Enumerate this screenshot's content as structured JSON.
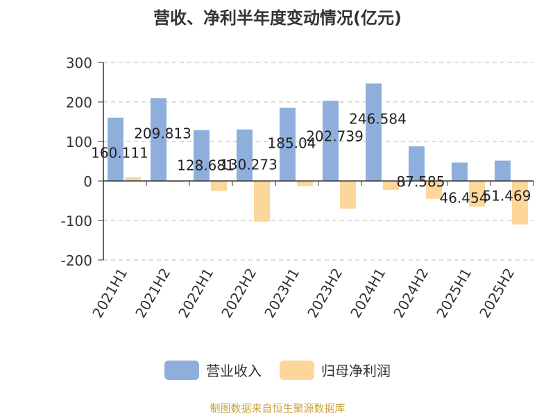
{
  "chart_data": {
    "type": "bar",
    "title": "营收、净利半年度变动情况(亿元)",
    "categories": [
      "2021H1",
      "2021H2",
      "2022H1",
      "2022H2",
      "2023H1",
      "2023H2",
      "2024H1",
      "2024H2",
      "2025H1",
      "2025H2"
    ],
    "series": [
      {
        "name": "营业收入",
        "color": "#8eafdc",
        "values": [
          160.111,
          209.813,
          128.681,
          130.273,
          185.04,
          202.739,
          246.584,
          87.585,
          46.454,
          51.469
        ],
        "labels": [
          "160.111",
          "209.813",
          "128.681",
          "130.273",
          "185.04",
          "202.739",
          "246.584",
          "87.585",
          "46.454",
          "51.469"
        ]
      },
      {
        "name": "归母净利润",
        "color": "#fdd79a",
        "values": [
          10,
          -3,
          -25,
          -103,
          -13,
          -70,
          -23,
          -45,
          -65,
          -110
        ]
      }
    ],
    "ylim": [
      -200,
      300
    ],
    "yticks": [
      -200,
      -100,
      0,
      100,
      200,
      300
    ],
    "grid": true,
    "legend_position": "bottom"
  },
  "footer": {
    "source": "制图数据来自恒生聚源数据库"
  }
}
